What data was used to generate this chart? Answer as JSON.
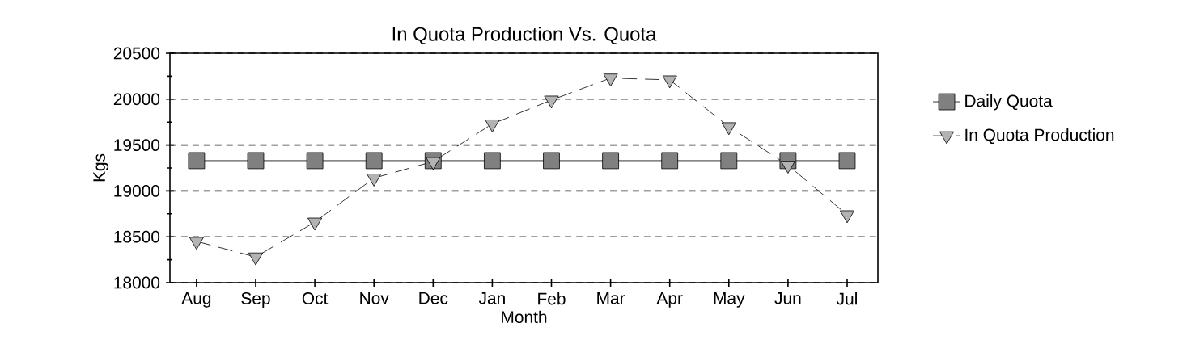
{
  "chart_data": {
    "type": "line",
    "title": "In Quota Production Vs. Quota",
    "xlabel": "Month",
    "ylabel": "Kgs",
    "categories": [
      "Aug",
      "Sep",
      "Oct",
      "Nov",
      "Dec",
      "Jan",
      "Feb",
      "Mar",
      "Apr",
      "May",
      "Jun",
      "Jul"
    ],
    "series": [
      {
        "name": "Daily Quota",
        "color": "#808080",
        "marker": "square",
        "line_style": "solid",
        "values": [
          19330,
          19330,
          19330,
          19330,
          19330,
          19330,
          19330,
          19330,
          19330,
          19330,
          19330,
          19330
        ]
      },
      {
        "name": "In Quota Production",
        "color": "#b3b3b3",
        "marker": "triangle",
        "line_style": "dashed",
        "values": [
          18450,
          18280,
          18660,
          19140,
          19320,
          19730,
          19990,
          20230,
          20210,
          19700,
          19280,
          18740
        ]
      }
    ],
    "ylim": [
      18000,
      20500
    ],
    "yticks": [
      18000,
      {
        "value": 18250,
        "label": null
      },
      18500,
      {
        "value": 18750,
        "label": null
      },
      19000,
      {
        "value": 19250,
        "label": null
      },
      19500,
      {
        "value": 19750,
        "label": null
      },
      20000,
      {
        "value": 20250,
        "label": null
      },
      20500
    ],
    "grid": "y",
    "legend": "right"
  }
}
